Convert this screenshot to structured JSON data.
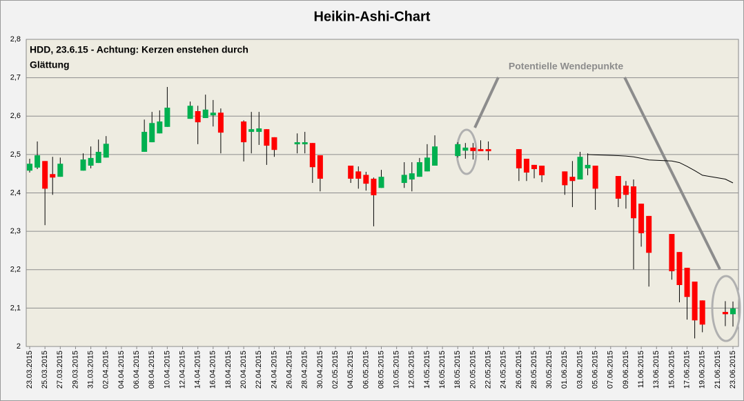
{
  "chart_data": {
    "type": "candlestick",
    "title": "Heikin-Ashi-Chart",
    "annotations": [
      "HDD, 23.6.15 - Achtung: Kerzen enstehen durch",
      "Glättung",
      "Potentielle Wendepunkte"
    ],
    "x": [
      "23.03.2015",
      "24.03.2015",
      "25.03.2015",
      "26.03.2015",
      "27.03.2015",
      "30.03.2015",
      "31.03.2015",
      "01.04.2015",
      "02.04.2015",
      "07.04.2015",
      "08.04.2015",
      "09.04.2015",
      "10.04.2015",
      "13.04.2015",
      "14.04.2015",
      "15.04.2015",
      "16.04.2015",
      "17.04.2015",
      "20.04.2015",
      "21.04.2015",
      "22.04.2015",
      "23.04.2015",
      "24.04.2015",
      "27.04.2015",
      "28.04.2015",
      "29.04.2015",
      "30.04.2015",
      "04.05.2015",
      "05.05.2015",
      "06.05.2015",
      "07.05.2015",
      "08.05.2015",
      "11.05.2015",
      "12.05.2015",
      "13.05.2015",
      "14.05.2015",
      "15.05.2015",
      "18.05.2015",
      "19.05.2015",
      "20.05.2015",
      "21.05.2015",
      "22.05.2015",
      "26.05.2015",
      "27.05.2015",
      "28.05.2015",
      "29.05.2015",
      "01.06.2015",
      "02.06.2015",
      "03.06.2015",
      "04.06.2015",
      "05.06.2015",
      "08.06.2015",
      "09.06.2015",
      "10.06.2015",
      "11.06.2015",
      "12.06.2015",
      "15.06.2015",
      "16.06.2015",
      "17.06.2015",
      "18.06.2015",
      "19.06.2015",
      "22.06.2015",
      "23.06.2015"
    ],
    "open": [
      2.458,
      2.466,
      2.483,
      2.449,
      2.442,
      2.458,
      2.471,
      2.478,
      2.492,
      2.507,
      2.532,
      2.555,
      2.572,
      2.593,
      2.613,
      2.595,
      2.602,
      2.609,
      2.586,
      2.559,
      2.559,
      2.566,
      2.545,
      2.527,
      2.527,
      2.53,
      2.498,
      2.471,
      2.456,
      2.447,
      2.437,
      2.413,
      2.426,
      2.435,
      2.442,
      2.456,
      2.471,
      2.496,
      2.51,
      2.518,
      2.514,
      2.514,
      2.514,
      2.489,
      2.473,
      2.471,
      2.456,
      2.442,
      2.435,
      2.464,
      2.471,
      2.444,
      2.419,
      2.417,
      2.372,
      2.34,
      2.293,
      2.246,
      2.205,
      2.169,
      2.12,
      2.09,
      2.084
    ],
    "high": [
      2.489,
      2.534,
      2.483,
      2.494,
      2.492,
      2.503,
      2.521,
      2.539,
      2.548,
      2.591,
      2.611,
      2.615,
      2.676,
      2.638,
      2.627,
      2.656,
      2.642,
      2.62,
      2.589,
      2.611,
      2.611,
      2.566,
      2.545,
      2.555,
      2.559,
      2.53,
      2.498,
      2.471,
      2.469,
      2.455,
      2.44,
      2.46,
      2.48,
      2.48,
      2.491,
      2.527,
      2.55,
      2.532,
      2.53,
      2.53,
      2.537,
      2.534,
      2.514,
      2.489,
      2.473,
      2.471,
      2.456,
      2.483,
      2.507,
      2.503,
      2.471,
      2.444,
      2.431,
      2.435,
      2.372,
      2.34,
      2.293,
      2.246,
      2.205,
      2.169,
      2.12,
      2.118,
      2.117
    ],
    "low": [
      2.453,
      2.462,
      2.316,
      2.395,
      2.442,
      2.458,
      2.464,
      2.478,
      2.492,
      2.507,
      2.532,
      2.555,
      2.572,
      2.593,
      2.527,
      2.595,
      2.573,
      2.503,
      2.482,
      2.503,
      2.525,
      2.473,
      2.494,
      2.503,
      2.503,
      2.426,
      2.404,
      2.426,
      2.411,
      2.406,
      2.313,
      2.413,
      2.413,
      2.404,
      2.442,
      2.456,
      2.471,
      2.492,
      2.489,
      2.487,
      2.509,
      2.485,
      2.431,
      2.431,
      2.438,
      2.428,
      2.395,
      2.363,
      2.435,
      2.446,
      2.356,
      2.363,
      2.359,
      2.201,
      2.26,
      2.156,
      2.174,
      2.115,
      2.07,
      2.021,
      2.037,
      2.053,
      2.052
    ],
    "close": [
      2.476,
      2.498,
      2.411,
      2.44,
      2.476,
      2.487,
      2.491,
      2.507,
      2.528,
      2.559,
      2.582,
      2.586,
      2.622,
      2.627,
      2.584,
      2.617,
      2.609,
      2.557,
      2.532,
      2.566,
      2.568,
      2.523,
      2.512,
      2.532,
      2.532,
      2.467,
      2.437,
      2.437,
      2.437,
      2.424,
      2.394,
      2.442,
      2.447,
      2.451,
      2.48,
      2.492,
      2.521,
      2.527,
      2.518,
      2.509,
      2.509,
      2.509,
      2.464,
      2.453,
      2.462,
      2.446,
      2.42,
      2.431,
      2.494,
      2.473,
      2.411,
      2.385,
      2.395,
      2.334,
      2.295,
      2.244,
      2.196,
      2.16,
      2.129,
      2.068,
      2.057,
      2.084,
      2.099
    ],
    "up_color": "#00b050",
    "down_color": "#ff0000",
    "moving_average": {
      "x": [
        "04.06.2015",
        "05.06.2015",
        "08.06.2015",
        "09.06.2015",
        "10.06.2015",
        "11.06.2015",
        "12.06.2015",
        "15.06.2015",
        "16.06.2015",
        "17.06.2015",
        "18.06.2015",
        "19.06.2015",
        "22.06.2015",
        "23.06.2015"
      ],
      "values": [
        2.5,
        2.499,
        2.497,
        2.496,
        2.494,
        2.49,
        2.486,
        2.483,
        2.479,
        2.469,
        2.458,
        2.446,
        2.436,
        2.426
      ],
      "color": "#000000"
    },
    "xticks": [
      "23.03.2015",
      "25.03.2015",
      "27.03.2015",
      "29.03.2015",
      "31.03.2015",
      "02.04.2015",
      "04.04.2015",
      "06.04.2015",
      "08.04.2015",
      "10.04.2015",
      "12.04.2015",
      "14.04.2015",
      "16.04.2015",
      "18.04.2015",
      "20.04.2015",
      "22.04.2015",
      "24.04.2015",
      "26.04.2015",
      "28.04.2015",
      "30.04.2015",
      "02.05.2015",
      "04.05.2015",
      "06.05.2015",
      "08.05.2015",
      "10.05.2015",
      "12.05.2015",
      "14.05.2015",
      "16.05.2015",
      "18.05.2015",
      "20.05.2015",
      "22.05.2015",
      "24.05.2015",
      "26.05.2015",
      "28.05.2015",
      "30.05.2015",
      "01.06.2015",
      "03.06.2015",
      "05.06.2015",
      "07.06.2015",
      "09.06.2015",
      "11.06.2015",
      "13.06.2015",
      "15.06.2015",
      "17.06.2015",
      "19.06.2015",
      "21.06.2015",
      "23.06.2015"
    ],
    "ylim": [
      2,
      2.8
    ],
    "yticks": [
      2,
      {
        "value": 2.1,
        "label": "2,1"
      },
      {
        "value": 2.2,
        "label": "2,2"
      },
      {
        "value": 2.3,
        "label": "2,3"
      },
      {
        "value": 2.4,
        "label": "2,4"
      },
      {
        "value": 2.5,
        "label": "2,5"
      },
      {
        "value": 2.6,
        "label": "2,6"
      },
      {
        "value": 2.7,
        "label": "2,7"
      },
      {
        "value": 2.8,
        "label": "2,8"
      }
    ],
    "grid": true
  }
}
